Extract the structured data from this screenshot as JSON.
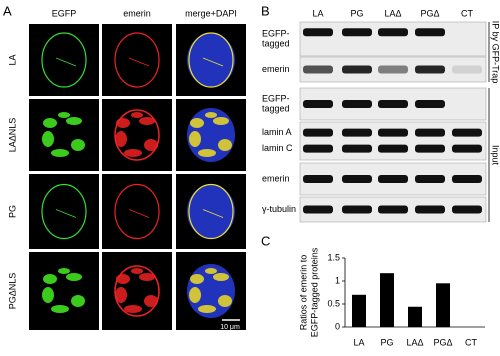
{
  "panel_labels": [
    "A",
    "B",
    "C"
  ],
  "panel_a": {
    "columns": [
      "EGFP",
      "emerin",
      "merge+DAPI"
    ],
    "rows": [
      "LA",
      "LAΔNLS",
      "PG",
      "PGΔNLS"
    ],
    "scale_bar": "10 μm"
  },
  "panel_b": {
    "lanes": [
      "LA",
      "PG",
      "LAΔ",
      "PGΔ",
      "CT"
    ],
    "rows": [
      [
        "EGFP-",
        "tagged"
      ],
      [
        "emerin"
      ],
      [
        "EGFP-",
        "tagged"
      ],
      [
        "lamin A",
        "lamin C"
      ],
      [
        "emerin"
      ],
      [
        "γ-tubulin"
      ]
    ],
    "groups": [
      "IP by GFP-Trap",
      "Input"
    ]
  },
  "chart_data": {
    "type": "bar",
    "ylabel": [
      "Ratios of emerin to",
      "EGFP-tagged proteins"
    ],
    "categories": [
      "LA",
      "PG",
      "LAΔ",
      "PGΔ",
      "CT"
    ],
    "values": [
      0.7,
      1.17,
      0.44,
      0.95,
      0
    ],
    "color": "#000000",
    "ylim": [
      0,
      1.5
    ],
    "yticks": [
      0,
      0.5,
      1,
      1.5
    ],
    "grid": false
  }
}
